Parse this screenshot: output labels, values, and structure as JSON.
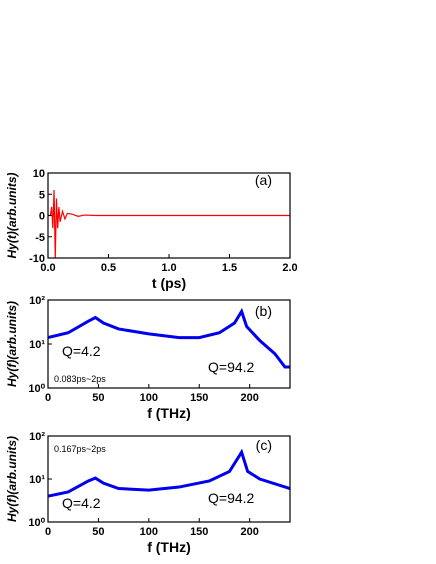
{
  "chart_data": [
    {
      "type": "line",
      "xlabel": "t (ps)",
      "ylabel": "Hy(t)(arb.units)",
      "color": "#ff0000",
      "x": [
        0,
        0.02,
        0.03,
        0.04,
        0.05,
        0.06,
        0.07,
        0.08,
        0.09,
        0.1,
        0.12,
        0.14,
        0.16,
        0.2,
        0.25,
        0.3,
        0.4,
        0.5,
        1.0,
        1.5,
        2.0
      ],
      "values": [
        0,
        0,
        2,
        -3,
        6,
        -10,
        4,
        -3,
        2,
        -1.5,
        1,
        -0.8,
        0.5,
        0.3,
        -0.2,
        0.1,
        0,
        0,
        0,
        0,
        0
      ],
      "xlim": [
        0,
        2
      ],
      "xticks": [
        {
          "value": 0,
          "label": "0.0"
        },
        0.5,
        {
          "value": 1,
          "label": "1.0"
        },
        1.5,
        {
          "value": 2,
          "label": "2.0"
        }
      ],
      "ylim": [
        -10,
        10
      ],
      "yticks": [
        10,
        5,
        0,
        -5,
        -10
      ],
      "annotations": [
        "(a)"
      ]
    },
    {
      "type": "line",
      "xlabel": "f (THz)",
      "ylabel": "Hy(f)(arb.units)",
      "color": "#0000ee",
      "yscale": "log",
      "x": [
        0,
        20,
        40,
        47,
        55,
        70,
        100,
        130,
        150,
        170,
        185,
        192,
        197,
        210,
        225,
        235,
        240
      ],
      "values": [
        14,
        18,
        33,
        40,
        30,
        22,
        17,
        14,
        14,
        18,
        30,
        55,
        25,
        12,
        6,
        3,
        3
      ],
      "xlim": [
        0,
        240
      ],
      "xticks": [
        0,
        50,
        100,
        150,
        200
      ],
      "ylim": [
        1,
        100
      ],
      "yticks": [
        {
          "value": 1,
          "label": "10⁰"
        },
        {
          "value": 10,
          "label": "10¹"
        },
        {
          "value": 100,
          "label": "10²"
        }
      ],
      "annotations": [
        "(b)",
        "Q=4.2",
        "Q=94.2",
        "0.083ps~2ps"
      ]
    },
    {
      "type": "line",
      "xlabel": "f (THz)",
      "ylabel": "Hy(f)(arb.units)",
      "color": "#0000ee",
      "yscale": "log",
      "x": [
        0,
        20,
        40,
        47,
        55,
        70,
        100,
        130,
        160,
        180,
        192,
        198,
        210,
        240
      ],
      "values": [
        4,
        5,
        9,
        10.5,
        8,
        6,
        5.5,
        6.5,
        9,
        15,
        42,
        15,
        10,
        6
      ],
      "xlim": [
        0,
        240
      ],
      "xticks": [
        0,
        50,
        100,
        150,
        200
      ],
      "ylim": [
        1,
        100
      ],
      "yticks": [
        {
          "value": 1,
          "label": "10⁰"
        },
        {
          "value": 10,
          "label": "10¹"
        },
        {
          "value": 100,
          "label": "10²"
        }
      ],
      "annotations": [
        "(c)",
        "Q=4.2",
        "Q=94.2",
        "0.167ps~2ps"
      ]
    }
  ]
}
